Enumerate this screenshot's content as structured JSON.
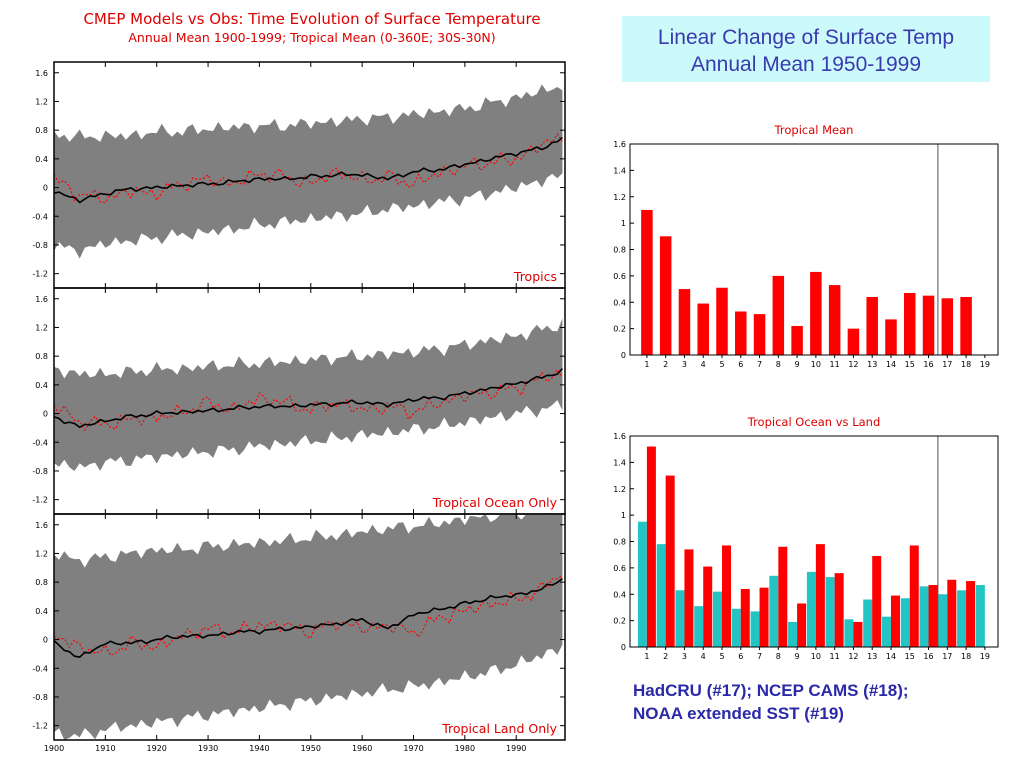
{
  "left_figure": {
    "title": "CMEP Models vs Obs: Time Evolution of Surface Temperature",
    "subtitle": "Annual Mean 1900-1999; Tropical Mean (0-360E; 30S-30N)",
    "y_ticks": [
      "1.6",
      "1.2",
      "0.8",
      "0.4",
      "0",
      "-0.4",
      "-0.8",
      "-1.2"
    ],
    "x_ticks": [
      "1900",
      "1910",
      "1920",
      "1930",
      "1940",
      "1950",
      "1960",
      "1970",
      "1980",
      "1990"
    ]
  },
  "right_title": {
    "line1": "Linear Change of Surface Temp",
    "line2": "Annual Mean 1950-1999"
  },
  "footnote": {
    "line1": "HadCRU (#17); NCEP CAMS (#18);",
    "line2": "NOAA extended SST (#19)"
  },
  "colors": {
    "title_red": "#dd0000",
    "band_gray": "#808080",
    "model_mean": "#000000",
    "observations": "#ff0000",
    "bar_red": "#ff0000",
    "bar_cyan": "#22c4c4",
    "title_box_bg": "#ccfafa",
    "title_box_text": "#3a3ab0",
    "footnote_text": "#2a2aa8"
  },
  "chart_data": [
    {
      "type": "area",
      "label": "Tropics",
      "x": [
        1900,
        1905,
        1910,
        1915,
        1920,
        1925,
        1930,
        1935,
        1940,
        1945,
        1950,
        1955,
        1960,
        1965,
        1970,
        1975,
        1980,
        1985,
        1990,
        1995,
        1999
      ],
      "band_upper": [
        0.75,
        0.7,
        0.72,
        0.72,
        0.78,
        0.78,
        0.82,
        0.84,
        0.86,
        0.86,
        0.9,
        0.92,
        0.96,
        0.98,
        1.02,
        1.06,
        1.1,
        1.18,
        1.25,
        1.35,
        1.42
      ],
      "band_lower": [
        -0.82,
        -0.88,
        -0.78,
        -0.74,
        -0.7,
        -0.66,
        -0.62,
        -0.58,
        -0.52,
        -0.48,
        -0.44,
        -0.4,
        -0.36,
        -0.3,
        -0.26,
        -0.2,
        -0.15,
        -0.08,
        0.0,
        0.1,
        0.15
      ],
      "model_mean": [
        -0.05,
        -0.18,
        -0.08,
        -0.02,
        0.0,
        0.03,
        0.05,
        0.08,
        0.12,
        0.12,
        0.15,
        0.18,
        0.18,
        0.12,
        0.22,
        0.25,
        0.32,
        0.4,
        0.48,
        0.55,
        0.68
      ],
      "observations": [
        0.12,
        -0.1,
        -0.15,
        -0.05,
        -0.08,
        0.05,
        0.12,
        0.05,
        0.2,
        0.15,
        0.05,
        0.22,
        0.1,
        0.15,
        0.05,
        0.2,
        0.3,
        0.35,
        0.4,
        0.6,
        0.7
      ],
      "ylim": [
        -1.4,
        1.75
      ],
      "y_ticks": [
        1.6,
        1.2,
        0.8,
        0.4,
        0,
        -0.4,
        -0.8,
        -1.2
      ]
    },
    {
      "type": "area",
      "label": "Tropical Ocean Only",
      "x": [
        1900,
        1905,
        1910,
        1915,
        1920,
        1925,
        1930,
        1935,
        1940,
        1945,
        1950,
        1955,
        1960,
        1965,
        1970,
        1975,
        1980,
        1985,
        1990,
        1995,
        1999
      ],
      "band_upper": [
        0.62,
        0.55,
        0.55,
        0.58,
        0.62,
        0.62,
        0.66,
        0.68,
        0.7,
        0.72,
        0.75,
        0.78,
        0.8,
        0.83,
        0.86,
        0.9,
        0.96,
        1.02,
        1.08,
        1.17,
        1.25
      ],
      "band_lower": [
        -0.7,
        -0.75,
        -0.68,
        -0.65,
        -0.6,
        -0.57,
        -0.53,
        -0.5,
        -0.45,
        -0.42,
        -0.38,
        -0.35,
        -0.3,
        -0.27,
        -0.22,
        -0.18,
        -0.12,
        -0.06,
        0.0,
        0.06,
        0.12
      ],
      "model_mean": [
        -0.05,
        -0.18,
        -0.1,
        -0.04,
        0.0,
        0.02,
        0.04,
        0.07,
        0.1,
        0.1,
        0.12,
        0.14,
        0.16,
        0.12,
        0.2,
        0.22,
        0.28,
        0.35,
        0.42,
        0.5,
        0.6
      ],
      "observations": [
        0.12,
        -0.12,
        -0.15,
        -0.08,
        -0.05,
        0.02,
        0.15,
        0.05,
        0.22,
        0.15,
        0.05,
        0.15,
        0.05,
        0.1,
        0.02,
        0.15,
        0.25,
        0.3,
        0.35,
        0.5,
        0.55
      ],
      "ylim": [
        -1.4,
        1.75
      ],
      "y_ticks": [
        1.6,
        1.2,
        0.8,
        0.4,
        0,
        -0.4,
        -0.8,
        -1.2
      ]
    },
    {
      "type": "area",
      "label": "Tropical Land Only",
      "x": [
        1900,
        1905,
        1910,
        1915,
        1920,
        1925,
        1930,
        1935,
        1940,
        1945,
        1950,
        1955,
        1960,
        1965,
        1970,
        1975,
        1980,
        1985,
        1990,
        1995,
        1999
      ],
      "band_upper": [
        1.2,
        1.1,
        1.15,
        1.2,
        1.25,
        1.25,
        1.3,
        1.32,
        1.35,
        1.38,
        1.42,
        1.45,
        1.5,
        1.55,
        1.58,
        1.62,
        1.68,
        1.72,
        1.78,
        1.8,
        1.8
      ],
      "band_lower": [
        -1.3,
        -1.35,
        -1.25,
        -1.2,
        -1.15,
        -1.1,
        -1.05,
        -1.0,
        -0.95,
        -0.9,
        -0.85,
        -0.8,
        -0.75,
        -0.7,
        -0.65,
        -0.6,
        -0.52,
        -0.45,
        -0.35,
        -0.22,
        -0.1
      ],
      "model_mean": [
        -0.05,
        -0.25,
        -0.05,
        -0.05,
        0.0,
        0.05,
        0.05,
        0.1,
        0.12,
        0.15,
        0.18,
        0.22,
        0.28,
        0.15,
        0.35,
        0.42,
        0.5,
        0.58,
        0.62,
        0.7,
        0.85
      ],
      "observations": [
        0.05,
        -0.1,
        -0.2,
        -0.05,
        -0.1,
        0.05,
        0.15,
        0.1,
        0.2,
        0.2,
        0.1,
        0.25,
        0.15,
        0.2,
        0.1,
        0.3,
        0.4,
        0.5,
        0.55,
        0.7,
        0.95
      ],
      "ylim": [
        -1.4,
        1.75
      ],
      "y_ticks": [
        1.6,
        1.2,
        0.8,
        0.4,
        0,
        -0.4,
        -0.8,
        -1.2
      ]
    },
    {
      "type": "bar",
      "title": "Tropical Mean",
      "categories": [
        "1",
        "2",
        "3",
        "4",
        "5",
        "6",
        "7",
        "8",
        "9",
        "10",
        "11",
        "12",
        "13",
        "14",
        "15",
        "16",
        "17",
        "18",
        "19"
      ],
      "series": [
        {
          "values": [
            1.1,
            0.9,
            0.5,
            0.39,
            0.51,
            0.33,
            0.31,
            0.6,
            0.22,
            0.63,
            0.53,
            0.2,
            0.44,
            0.27,
            0.47,
            0.45,
            0.43,
            0.44,
            null
          ]
        }
      ],
      "ylim": [
        0,
        1.6
      ],
      "y_ticks": [
        "0",
        "0.2",
        "0.4",
        "0.6",
        "0.8",
        "1",
        "1.2",
        "1.4",
        "1.6"
      ],
      "divider_after": 16
    },
    {
      "type": "bar",
      "title": "Tropical Ocean vs Land",
      "categories": [
        "1",
        "2",
        "3",
        "4",
        "5",
        "6",
        "7",
        "8",
        "9",
        "10",
        "11",
        "12",
        "13",
        "14",
        "15",
        "16",
        "17",
        "18",
        "19"
      ],
      "series": [
        {
          "color": "cyan",
          "values": [
            0.95,
            0.78,
            0.43,
            0.31,
            0.42,
            0.29,
            0.27,
            0.54,
            0.19,
            0.57,
            0.53,
            0.21,
            0.36,
            0.23,
            0.37,
            0.46,
            0.4,
            0.43,
            0.47
          ]
        },
        {
          "color": "red",
          "values": [
            1.52,
            1.3,
            0.74,
            0.61,
            0.77,
            0.44,
            0.45,
            0.76,
            0.33,
            0.78,
            0.56,
            0.19,
            0.69,
            0.39,
            0.77,
            0.47,
            0.51,
            0.5,
            null
          ]
        }
      ],
      "ylim": [
        0,
        1.6
      ],
      "y_ticks": [
        "0",
        "0.2",
        "0.4",
        "0.6",
        "0.8",
        "1",
        "1.2",
        "1.4",
        "1.6"
      ],
      "divider_after": 16
    }
  ]
}
